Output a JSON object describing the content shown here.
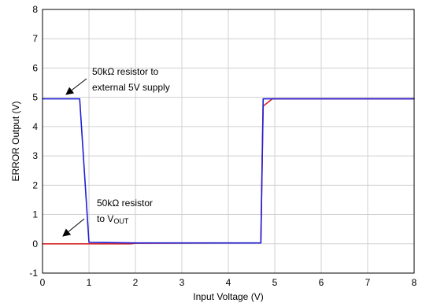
{
  "chart_data": {
    "type": "line",
    "title": "",
    "xlabel": "Input Voltage (V)",
    "ylabel": "ERROR Output (V)",
    "xlim": [
      0,
      8
    ],
    "ylim": [
      -1,
      8
    ],
    "grid": true,
    "x_ticks": [
      "0",
      "1",
      "2",
      "3",
      "4",
      "5",
      "6",
      "7",
      "8"
    ],
    "y_ticks": [
      "-1",
      "0",
      "1",
      "2",
      "3",
      "4",
      "5",
      "6",
      "7",
      "8"
    ],
    "series": [
      {
        "color": "#d62728",
        "points": [
          [
            0,
            0.0
          ],
          [
            1.0,
            0.0
          ],
          [
            1.9,
            0.0
          ],
          [
            2.0,
            0.02
          ],
          [
            4.7,
            0.03
          ],
          [
            4.75,
            4.7
          ],
          [
            4.95,
            4.95
          ],
          [
            8,
            4.95
          ]
        ]
      },
      {
        "color": "#1f1fd6",
        "points": [
          [
            0,
            4.95
          ],
          [
            0.8,
            4.95
          ],
          [
            1.0,
            0.05
          ],
          [
            2.0,
            0.03
          ],
          [
            4.7,
            0.03
          ],
          [
            4.75,
            4.95
          ],
          [
            8,
            4.95
          ]
        ]
      }
    ],
    "annotations": [
      {
        "lines": [
          "50kΩ resistor to",
          "external 5V supply"
        ]
      },
      {
        "line1": "50kΩ resistor",
        "line2_prefix": "to V",
        "line2_sub": "OUT"
      }
    ]
  }
}
